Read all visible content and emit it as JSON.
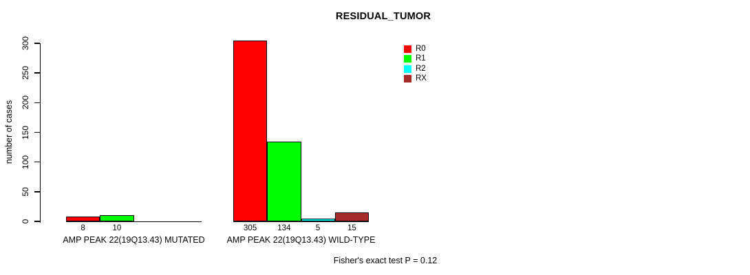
{
  "chart_data": {
    "type": "bar",
    "title": "RESIDUAL_TUMOR",
    "ylabel": "number of cases",
    "xlabel": "",
    "annotation": "Fisher's exact test P = 0.12",
    "ylim": [
      0,
      300
    ],
    "yticks": [
      0,
      50,
      100,
      150,
      200,
      250,
      300
    ],
    "grid": false,
    "legend_position": "top-right-inside",
    "background_color": "#FFFFFF",
    "bar_border_color": "#000000",
    "categories": [
      "AMP PEAK 22(19Q13.43) MUTATED",
      "AMP PEAK 22(19Q13.43) WILD-TYPE"
    ],
    "series": [
      {
        "name": "R0",
        "color": "#FF0000",
        "values": [
          8,
          305
        ]
      },
      {
        "name": "R1",
        "color": "#00FF00",
        "values": [
          10,
          134
        ]
      },
      {
        "name": "R2",
        "color": "#00FFFF",
        "values": [
          0,
          5
        ]
      },
      {
        "name": "RX",
        "color": "#A52A2A",
        "values": [
          0,
          15
        ]
      }
    ],
    "value_labels_shown_for_nonzero_only": true
  }
}
